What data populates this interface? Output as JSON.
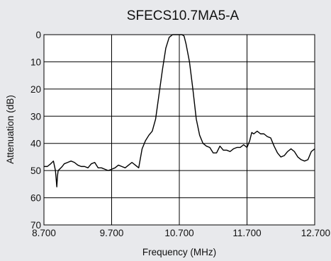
{
  "chart_data": {
    "type": "line",
    "title": "SFECS10.7MA5-A",
    "xlabel": "Frequency (MHz)",
    "ylabel": "Attenuation (dB)",
    "xlim": [
      8.7,
      12.7
    ],
    "ylim": [
      0,
      70
    ],
    "y_inverted": true,
    "grid": true,
    "x_tick_values": [
      8.7,
      9.7,
      10.7,
      11.7,
      12.7
    ],
    "x_tick_labels": [
      "8.700",
      "9.700",
      "10.700",
      "11.700",
      "12.700"
    ],
    "y_tick_values": [
      0,
      10,
      20,
      30,
      40,
      50,
      60,
      70
    ],
    "y_tick_labels": [
      "0",
      "10",
      "20",
      "30",
      "40",
      "50",
      "60",
      "70"
    ],
    "series": [
      {
        "color": "#000000",
        "x": [
          8.7,
          8.75,
          8.8,
          8.84,
          8.87,
          8.88,
          8.89,
          8.9,
          8.91,
          8.93,
          8.97,
          9.0,
          9.05,
          9.1,
          9.15,
          9.2,
          9.25,
          9.3,
          9.35,
          9.4,
          9.45,
          9.5,
          9.55,
          9.6,
          9.65,
          9.7,
          9.75,
          9.8,
          9.85,
          9.9,
          9.95,
          10.0,
          10.05,
          10.1,
          10.15,
          10.2,
          10.25,
          10.3,
          10.35,
          10.4,
          10.45,
          10.5,
          10.55,
          10.6,
          10.63,
          10.66,
          10.7,
          10.74,
          10.77,
          10.8,
          10.85,
          10.9,
          10.95,
          11.0,
          11.05,
          11.1,
          11.15,
          11.2,
          11.25,
          11.3,
          11.35,
          11.4,
          11.45,
          11.5,
          11.55,
          11.6,
          11.65,
          11.7,
          11.74,
          11.77,
          11.8,
          11.85,
          11.9,
          11.95,
          12.0,
          12.05,
          12.1,
          12.15,
          12.2,
          12.25,
          12.3,
          12.35,
          12.4,
          12.45,
          12.5,
          12.55,
          12.6,
          12.65,
          12.7
        ],
        "y": [
          48.5,
          48.5,
          47.5,
          46.5,
          50.0,
          53.0,
          56.0,
          52.0,
          50.0,
          49.5,
          48.5,
          47.5,
          47.0,
          46.5,
          47.0,
          48.0,
          48.5,
          48.5,
          49.0,
          47.5,
          47.0,
          49.0,
          49.0,
          49.5,
          50.0,
          49.5,
          49.0,
          48.0,
          48.5,
          49.0,
          48.0,
          47.0,
          48.0,
          49.0,
          42.0,
          39.0,
          37.0,
          35.5,
          31.0,
          22.0,
          13.0,
          5.0,
          1.0,
          0.0,
          0.0,
          0.0,
          0.0,
          0.0,
          0.5,
          3.5,
          10.0,
          20.0,
          31.0,
          37.0,
          40.0,
          41.0,
          41.5,
          43.5,
          43.5,
          41.0,
          42.5,
          42.5,
          43.0,
          42.0,
          41.5,
          41.5,
          40.5,
          41.5,
          39.0,
          36.0,
          36.5,
          35.5,
          36.5,
          36.5,
          37.5,
          38.0,
          41.0,
          43.5,
          45.0,
          44.5,
          43.0,
          42.0,
          43.0,
          45.0,
          46.0,
          46.5,
          46.0,
          43.0,
          42.0
        ]
      }
    ]
  }
}
